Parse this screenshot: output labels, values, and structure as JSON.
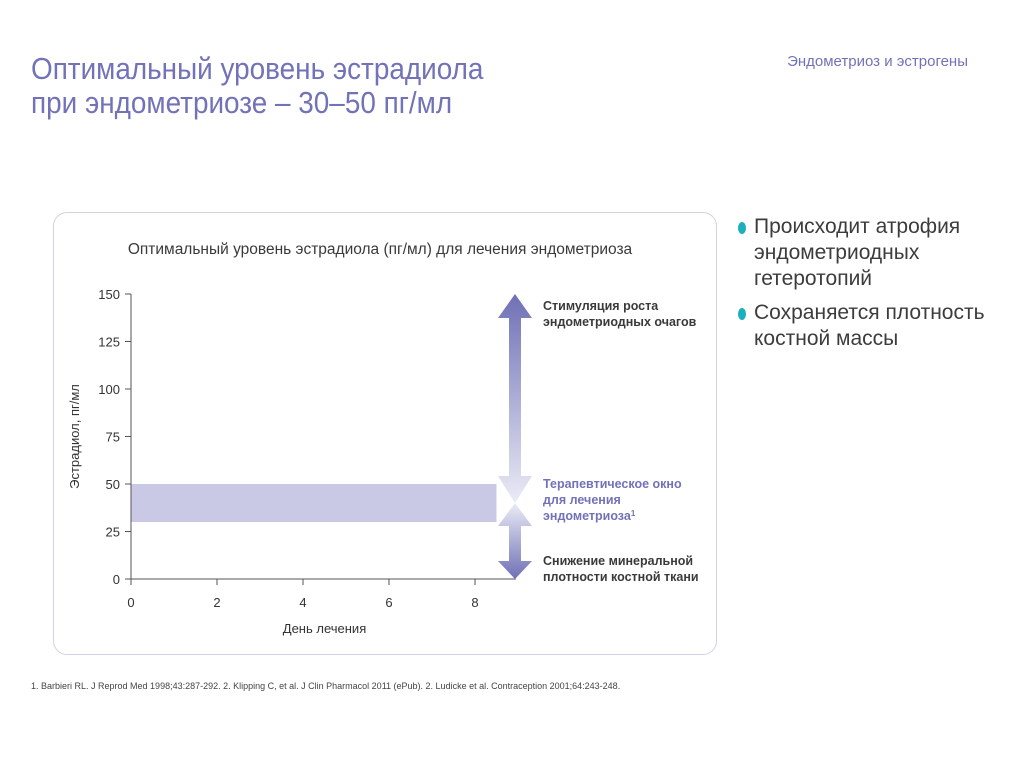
{
  "header": {
    "title_line1": "Оптимальный уровень эстрадиола",
    "title_line2": "при эндометриозе – 30–50 пг/мл",
    "section_tag": "Эндометриоз и эстрогены"
  },
  "bullets": [
    "Происходит атрофия эндометриодных гетеротопий",
    "Сохраняется плотность костной массы"
  ],
  "footnote": "1. Barbieri RL. J Reprod Med 1998;43:287-292. 2. Klipping C, et al. J Clin Pharmacol 2011 (ePub). 2. Ludicke et al. Contraception 2001;64:243-248.",
  "colors": {
    "accent": "#7272b8",
    "band": "#c9c9e6",
    "arrow_dark": "#6f70b5",
    "arrow_light": "#ebebf6",
    "bullet": "#1ab0bd"
  },
  "chart_data": {
    "type": "area",
    "title": "Оптимальный уровень эстрадиола (пг/мл) для лечения эндометриоза",
    "xlabel": "День лечения",
    "ylabel": "Эстрадиол, пг/мл",
    "xlim": [
      0,
      9
    ],
    "ylim": [
      0,
      150
    ],
    "xticks": [
      0,
      2,
      4,
      6,
      8
    ],
    "yticks": [
      0,
      25,
      50,
      75,
      100,
      125,
      150
    ],
    "grid": false,
    "band": {
      "x": [
        0,
        8.5
      ],
      "y_low": 30,
      "y_high": 50
    },
    "annotations": [
      {
        "lines": [
          "Стимуляция роста",
          "эндометриодных очагов"
        ],
        "sup": "",
        "y_range": [
          50,
          150
        ],
        "highlight": false
      },
      {
        "lines": [
          "Терапевтическое окно",
          "для лечения",
          "эндометриоза"
        ],
        "sup": "1",
        "y_range": [
          30,
          50
        ],
        "highlight": true
      },
      {
        "lines": [
          "Снижение минеральной",
          "плотности костной ткани"
        ],
        "sup": "",
        "y_range": [
          0,
          30
        ],
        "highlight": false
      }
    ]
  }
}
